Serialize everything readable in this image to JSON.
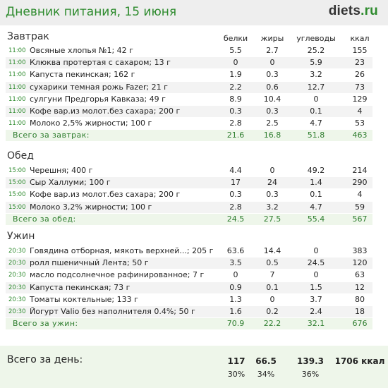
{
  "header": {
    "title": "Дневник питания, 15 июня",
    "logo_part1": "diets",
    "logo_part2": ".ru"
  },
  "columns": {
    "protein": "белки",
    "fat": "жиры",
    "carbs": "углеводы",
    "kcal": "ккал"
  },
  "sections": [
    {
      "title": "Завтрак",
      "items": [
        {
          "time": "11:00",
          "name": "Овсяные хлопья №1; 42 г",
          "protein": "5.5",
          "fat": "2.7",
          "carbs": "25.2",
          "kcal": "155"
        },
        {
          "time": "11:00",
          "name": "Клюква протертая с сахаром; 13 г",
          "protein": "0",
          "fat": "0",
          "carbs": "5.9",
          "kcal": "23"
        },
        {
          "time": "11:00",
          "name": "Капуста пекинская; 162 г",
          "protein": "1.9",
          "fat": "0.3",
          "carbs": "3.2",
          "kcal": "26"
        },
        {
          "time": "11:00",
          "name": "сухарики темная рожь Fazer; 21 г",
          "protein": "2.2",
          "fat": "0.6",
          "carbs": "12.7",
          "kcal": "73"
        },
        {
          "time": "11:00",
          "name": "сулгуни Предгорья Кавказа; 49 г",
          "protein": "8.9",
          "fat": "10.4",
          "carbs": "0",
          "kcal": "129"
        },
        {
          "time": "11:00",
          "name": "Кофе вар.из молот.без сахара; 200 г",
          "protein": "0.3",
          "fat": "0.3",
          "carbs": "0.1",
          "kcal": "4"
        },
        {
          "time": "11:00",
          "name": "Молоко 2,5% жирности; 100 г",
          "protein": "2.8",
          "fat": "2.5",
          "carbs": "4.7",
          "kcal": "53"
        }
      ],
      "total": {
        "label": "Всего за завтрак:",
        "protein": "21.6",
        "fat": "16.8",
        "carbs": "51.8",
        "kcal": "463"
      }
    },
    {
      "title": "Обед",
      "items": [
        {
          "time": "15:00",
          "name": "Черешня; 400 г",
          "protein": "4.4",
          "fat": "0",
          "carbs": "49.2",
          "kcal": "214"
        },
        {
          "time": "15:00",
          "name": "Сыр Халлуми; 100 г",
          "protein": "17",
          "fat": "24",
          "carbs": "1.4",
          "kcal": "290"
        },
        {
          "time": "15:00",
          "name": "Кофе вар.из молот.без сахара; 200 г",
          "protein": "0.3",
          "fat": "0.3",
          "carbs": "0.1",
          "kcal": "4"
        },
        {
          "time": "15:00",
          "name": "Молоко 3,2% жирности; 100 г",
          "protein": "2.8",
          "fat": "3.2",
          "carbs": "4.7",
          "kcal": "59"
        }
      ],
      "total": {
        "label": "Всего за обед:",
        "protein": "24.5",
        "fat": "27.5",
        "carbs": "55.4",
        "kcal": "567"
      }
    },
    {
      "title": "Ужин",
      "items": [
        {
          "time": "20:30",
          "name": "Говядина отборная, мякоть верхней...; 205 г",
          "protein": "63.6",
          "fat": "14.4",
          "carbs": "0",
          "kcal": "383"
        },
        {
          "time": "20:30",
          "name": "ролл пшеничный Лента; 50 г",
          "protein": "3.5",
          "fat": "0.5",
          "carbs": "24.5",
          "kcal": "120"
        },
        {
          "time": "20:30",
          "name": "масло подсолнечное рафинированное; 7 г",
          "protein": "0",
          "fat": "7",
          "carbs": "0",
          "kcal": "63"
        },
        {
          "time": "20:30",
          "name": "Капуста пекинская; 73 г",
          "protein": "0.9",
          "fat": "0.1",
          "carbs": "1.5",
          "kcal": "12"
        },
        {
          "time": "20:30",
          "name": "Томаты коктельные; 133 г",
          "protein": "1.3",
          "fat": "0",
          "carbs": "3.7",
          "kcal": "80"
        },
        {
          "time": "20:30",
          "name": "Йогурт Valio без наполнителя 0.4%; 50 г",
          "protein": "1.6",
          "fat": "0.2",
          "carbs": "2.4",
          "kcal": "18"
        }
      ],
      "total": {
        "label": "Всего за ужин:",
        "protein": "70.9",
        "fat": "22.2",
        "carbs": "32.1",
        "kcal": "676"
      }
    }
  ],
  "day_total": {
    "label": "Всего за день:",
    "protein": "117",
    "fat": "66.5",
    "carbs": "139.3",
    "kcal": "1706 ккал",
    "protein_pct": "30%",
    "fat_pct": "34%",
    "carbs_pct": "36%"
  }
}
